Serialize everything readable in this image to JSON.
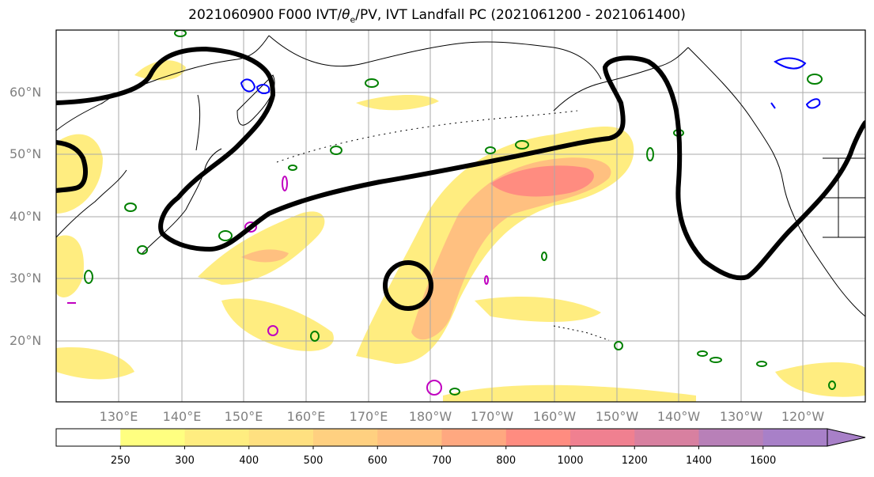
{
  "title": {
    "main": "2021060900 F000 IVT/",
    "theta": "θ",
    "theta_sub": "e",
    "rest": "/PV, IVT Landfall PC (2021061200 - 2021061400)"
  },
  "axes": {
    "lat_labels": [
      "60°N",
      "50°N",
      "40°N",
      "30°N",
      "20°N"
    ],
    "lon_labels": [
      "130°E",
      "140°E",
      "150°E",
      "160°E",
      "170°E",
      "180°W",
      "170°W",
      "160°W",
      "150°W",
      "140°W",
      "130°W",
      "120°W"
    ]
  },
  "colorbar": {
    "levels": [
      "250",
      "300",
      "400",
      "500",
      "600",
      "700",
      "800",
      "1000",
      "1200",
      "1400",
      "1600"
    ],
    "colors": [
      "#ffff80",
      "#ffed80",
      "#ffe080",
      "#ffd080",
      "#ffc080",
      "#ffa880",
      "#ff8c80",
      "#f08090",
      "#d880a0",
      "#b880b8",
      "#a880c8"
    ]
  },
  "styles": {
    "pc_contour_color": "#000000",
    "theta_e_contour_color": "#008000",
    "pv_pos_color": "#0000ff",
    "pv_neg_color": "#c000c0",
    "coast_color": "#000000",
    "grid_color": "#aaaaaa"
  }
}
